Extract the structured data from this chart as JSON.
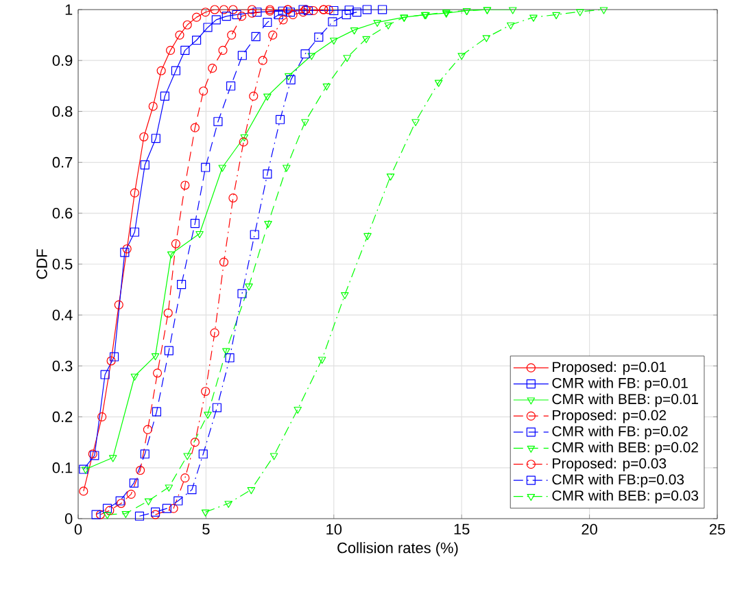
{
  "chart_data": {
    "type": "line",
    "xlabel": "Collision rates (%)",
    "ylabel": "CDF",
    "xlim": [
      0,
      25
    ],
    "ylim": [
      0,
      1
    ],
    "xticks": [
      0,
      5,
      10,
      15,
      20,
      25
    ],
    "yticks": [
      0,
      0.1,
      0.2,
      0.3,
      0.4,
      0.5,
      0.6,
      0.7,
      0.8,
      0.9,
      1
    ],
    "grid": true,
    "legend": "bottom right",
    "series": [
      {
        "name": "Proposed: p=0.01",
        "color": "#ff0000",
        "marker": "circle",
        "line_style": "solid",
        "x": [
          0.21,
          0.57,
          0.93,
          1.29,
          1.59,
          1.91,
          2.21,
          2.57,
          2.93,
          3.25,
          3.61,
          3.97,
          4.27,
          4.63,
          4.98,
          5.34,
          5.7,
          6.06,
          6.8,
          7.5,
          8.2,
          8.9,
          9.8
        ],
        "values": [
          0.054,
          0.127,
          0.2,
          0.31,
          0.42,
          0.53,
          0.64,
          0.75,
          0.81,
          0.88,
          0.92,
          0.95,
          0.97,
          0.985,
          0.995,
          1.0,
          1.0,
          1.0,
          1.0,
          1.0,
          1.0,
          1.0,
          1.0
        ]
      },
      {
        "name": "CMR with FB: p=0.01",
        "color": "#0000ff",
        "marker": "square",
        "line_style": "solid",
        "x": [
          0.21,
          0.64,
          1.05,
          1.41,
          1.82,
          2.21,
          2.61,
          3.04,
          3.39,
          3.82,
          4.18,
          4.63,
          5.07,
          5.4,
          5.8,
          6.2,
          7.0,
          8.0,
          9.0,
          10.0,
          10.6,
          11.3,
          11.9
        ],
        "values": [
          0.097,
          0.124,
          0.283,
          0.318,
          0.523,
          0.563,
          0.695,
          0.747,
          0.83,
          0.88,
          0.92,
          0.94,
          0.965,
          0.98,
          0.987,
          0.99,
          0.995,
          0.997,
          0.998,
          0.998,
          0.999,
          1.0,
          1.0
        ]
      },
      {
        "name": "CMR with BEB: p=0.01",
        "color": "#00ff00",
        "marker": "triangle",
        "line_style": "solid",
        "x": [
          0.29,
          1.36,
          2.21,
          3.02,
          3.64,
          4.75,
          5.64,
          6.5,
          7.4,
          8.23,
          9.13,
          10.0,
          10.8,
          11.7,
          12.75,
          13.56,
          14.4,
          15.2,
          16.0,
          17.0
        ],
        "values": [
          0.097,
          0.12,
          0.28,
          0.32,
          0.52,
          0.56,
          0.69,
          0.75,
          0.83,
          0.87,
          0.91,
          0.94,
          0.96,
          0.975,
          0.985,
          0.99,
          0.993,
          0.998,
          1.0,
          1.0
        ]
      },
      {
        "name": "Proposed: p=0.02",
        "color": "#ff0000",
        "marker": "circle",
        "line_style": "dashed",
        "x": [
          0.87,
          1.23,
          1.68,
          2.07,
          2.43,
          2.72,
          3.1,
          3.52,
          3.82,
          4.18,
          4.57,
          4.9,
          5.25,
          5.66,
          6.0,
          6.4,
          6.8,
          7.5,
          8.2,
          8.9,
          9.6
        ],
        "values": [
          0.008,
          0.016,
          0.03,
          0.048,
          0.095,
          0.175,
          0.286,
          0.404,
          0.54,
          0.655,
          0.768,
          0.84,
          0.885,
          0.92,
          0.95,
          0.987,
          0.993,
          0.997,
          1.0,
          1.0,
          1.0
        ]
      },
      {
        "name": "CMR with FB: p=0.02",
        "color": "#0000ff",
        "marker": "square",
        "line_style": "dashed",
        "x": [
          0.7,
          1.14,
          1.64,
          2.18,
          2.61,
          3.07,
          3.55,
          4.04,
          4.57,
          4.98,
          5.47,
          5.97,
          6.42,
          6.95,
          7.4,
          7.84,
          8.3,
          8.8
        ],
        "values": [
          0.008,
          0.02,
          0.035,
          0.07,
          0.127,
          0.21,
          0.33,
          0.46,
          0.58,
          0.69,
          0.78,
          0.85,
          0.91,
          0.947,
          0.975,
          0.99,
          0.995,
          1.0
        ]
      },
      {
        "name": "CMR with BEB: p=0.02",
        "color": "#00ff00",
        "marker": "triangle",
        "line_style": "dashed",
        "x": [
          1.14,
          1.86,
          2.75,
          3.55,
          4.27,
          5.07,
          5.79,
          6.68,
          7.43,
          8.15,
          8.88,
          9.72,
          10.52,
          11.27,
          12.13,
          12.75,
          13.6,
          14.4,
          15.2,
          16.0
        ],
        "values": [
          0.008,
          0.01,
          0.035,
          0.062,
          0.124,
          0.205,
          0.33,
          0.457,
          0.58,
          0.69,
          0.78,
          0.85,
          0.906,
          0.943,
          0.97,
          0.985,
          0.99,
          0.995,
          0.998,
          1.0
        ]
      },
      {
        "name": "Proposed: p=0.03",
        "color": "#ff0000",
        "marker": "circle",
        "line_style": "dashdot",
        "x": [
          3.02,
          3.73,
          4.18,
          4.57,
          4.98,
          5.34,
          5.7,
          6.06,
          6.47,
          6.86,
          7.22,
          7.61,
          8.02,
          8.4,
          8.8,
          9.2,
          9.6
        ],
        "values": [
          0.008,
          0.02,
          0.08,
          0.15,
          0.25,
          0.365,
          0.504,
          0.63,
          0.74,
          0.83,
          0.9,
          0.95,
          0.98,
          0.99,
          0.995,
          0.998,
          1.0
        ]
      },
      {
        "name": "CMR with FB:p=0.03",
        "color": "#0000ff",
        "marker": "square",
        "line_style": "dashdot",
        "x": [
          2.4,
          3.02,
          3.47,
          3.91,
          4.45,
          4.89,
          5.43,
          5.93,
          6.41,
          6.9,
          7.4,
          7.9,
          8.32,
          8.88,
          9.41,
          9.95,
          10.49,
          10.9
        ],
        "values": [
          0.005,
          0.013,
          0.02,
          0.035,
          0.057,
          0.127,
          0.218,
          0.316,
          0.442,
          0.558,
          0.677,
          0.784,
          0.862,
          0.913,
          0.946,
          0.976,
          0.99,
          0.995
        ]
      },
      {
        "name": "CMR with BEB: p=0.03",
        "color": "#00ff00",
        "marker": "triangle",
        "line_style": "dashdot",
        "x": [
          4.98,
          5.88,
          6.77,
          7.66,
          8.59,
          9.54,
          10.43,
          11.32,
          12.22,
          13.2,
          14.1,
          15.0,
          15.97,
          16.92,
          17.81,
          18.7,
          19.63,
          20.56
        ],
        "values": [
          0.013,
          0.03,
          0.057,
          0.124,
          0.215,
          0.313,
          0.44,
          0.556,
          0.673,
          0.78,
          0.857,
          0.91,
          0.945,
          0.97,
          0.985,
          0.99,
          0.996,
          1.0
        ]
      }
    ]
  }
}
